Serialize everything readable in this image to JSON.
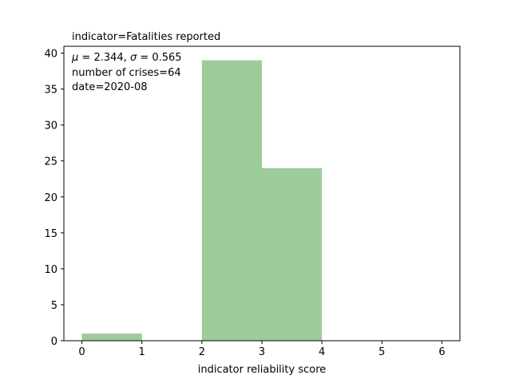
{
  "chart_data": {
    "type": "bar",
    "title": "indicator=Fatalities reported",
    "xlabel": "indicator reliability score",
    "ylabel": "",
    "xlim": [
      -0.3,
      6.3
    ],
    "ylim": [
      0,
      40.95
    ],
    "xticks": [
      0,
      1,
      2,
      3,
      4,
      5,
      6
    ],
    "yticks": [
      0,
      5,
      10,
      15,
      20,
      25,
      30,
      35,
      40
    ],
    "bins": [
      {
        "x0": 0,
        "x1": 1,
        "value": 1
      },
      {
        "x0": 1,
        "x1": 2,
        "value": 0
      },
      {
        "x0": 2,
        "x1": 3,
        "value": 39
      },
      {
        "x0": 3,
        "x1": 4,
        "value": 24
      },
      {
        "x0": 4,
        "x1": 5,
        "value": 0
      },
      {
        "x0": 5,
        "x1": 6,
        "value": 0
      }
    ],
    "bar_color": "#9ccc99",
    "grid": false,
    "annotations": {
      "stats_mu": "2.344",
      "stats_sigma": "0.565",
      "crises": "number of crises=64",
      "date": "date=2020-08"
    }
  }
}
